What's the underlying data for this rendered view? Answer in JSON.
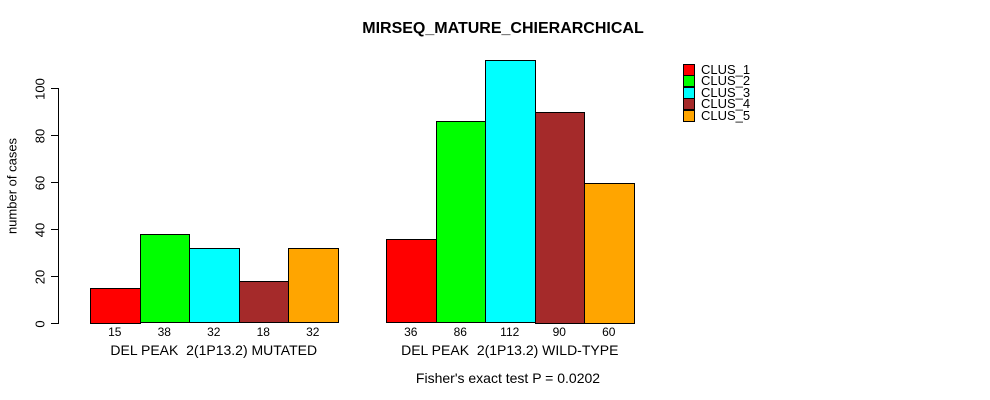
{
  "chart_data": {
    "type": "bar",
    "title": "MIRSEQ_MATURE_CHIERARCHICAL",
    "ylabel": "number of cases",
    "xlabel": "",
    "ylim": [
      0,
      117
    ],
    "yticks": [
      0,
      20,
      40,
      60,
      80,
      100
    ],
    "grid": false,
    "legend_position": "right",
    "categories": [
      "DEL PEAK  2(1P13.2) MUTATED",
      "DEL PEAK  2(1P13.2) WILD-TYPE"
    ],
    "series": [
      {
        "name": "CLUS_1",
        "color": "#FF0000",
        "values": [
          15,
          36
        ]
      },
      {
        "name": "CLUS_2",
        "color": "#00FF00",
        "values": [
          38,
          86
        ]
      },
      {
        "name": "CLUS_3",
        "color": "#00FFFF",
        "values": [
          32,
          112
        ]
      },
      {
        "name": "CLUS_4",
        "color": "#A52A2A",
        "values": [
          18,
          90
        ]
      },
      {
        "name": "CLUS_5",
        "color": "#FFA500",
        "values": [
          32,
          60
        ]
      }
    ],
    "bar_value_labels": [
      [
        15,
        38,
        32,
        18,
        32
      ],
      [
        36,
        86,
        112,
        90,
        60
      ]
    ],
    "annotation": "Fisher's exact test P = 0.0202"
  }
}
